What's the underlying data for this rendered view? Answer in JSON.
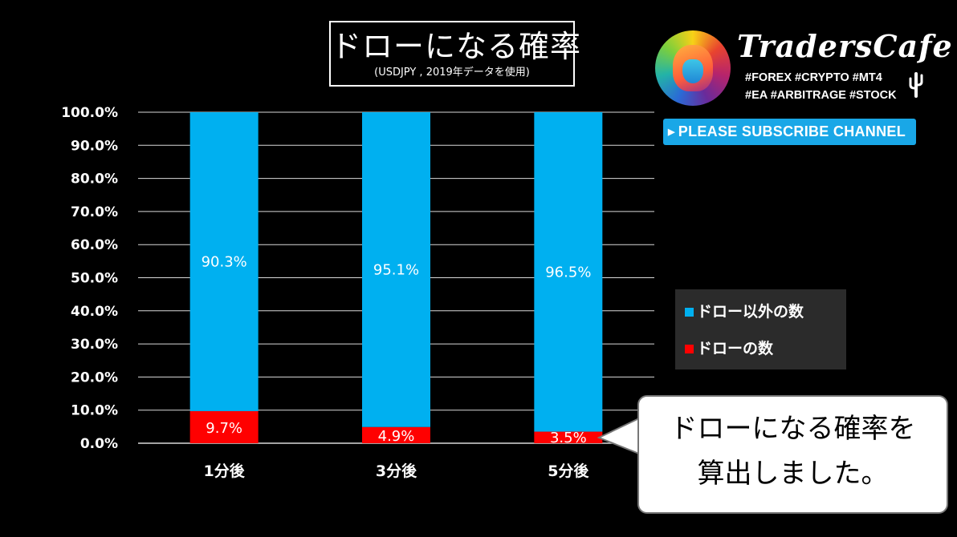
{
  "title": "ドローになる確率",
  "subtitle": "(USDJPY , 2019年データを使用)",
  "brand": {
    "name": "TradersCafe",
    "tags_line1": "#FOREX #CRYPTO #MT4",
    "tags_line2": "#EA #ARBITRAGE #STOCK",
    "logo_icon": "lion-logo-icon",
    "cactus_icon": "cactus-icon"
  },
  "subscribe": {
    "label": "PLEASE SUBSCRIBE CHANNEL",
    "icon": "play-triangle-icon",
    "color": "#19a7e7"
  },
  "callout": {
    "line1": "ドローになる確率を",
    "line2": "算出しました。"
  },
  "legend": {
    "items": [
      "ドロー以外の数",
      "ドローの数"
    ]
  },
  "chart_data": {
    "type": "bar",
    "stacked": true,
    "categories": [
      "1分後",
      "3分後",
      "5分後"
    ],
    "series": [
      {
        "name": "ドローの数",
        "values": [
          9.7,
          4.9,
          3.5
        ],
        "labels": [
          "9.7%",
          "4.9%",
          "3.5%"
        ],
        "color": "#ff0000"
      },
      {
        "name": "ドロー以外の数",
        "values": [
          90.3,
          95.1,
          96.5
        ],
        "labels": [
          "90.3%",
          "95.1%",
          "96.5%"
        ],
        "color": "#00b0f0"
      }
    ],
    "ylim": [
      0,
      100
    ],
    "yticks": [
      "0.0%",
      "10.0%",
      "20.0%",
      "30.0%",
      "40.0%",
      "50.0%",
      "60.0%",
      "70.0%",
      "80.0%",
      "90.0%",
      "100.0%"
    ],
    "grid": true,
    "legend_position": "right"
  }
}
